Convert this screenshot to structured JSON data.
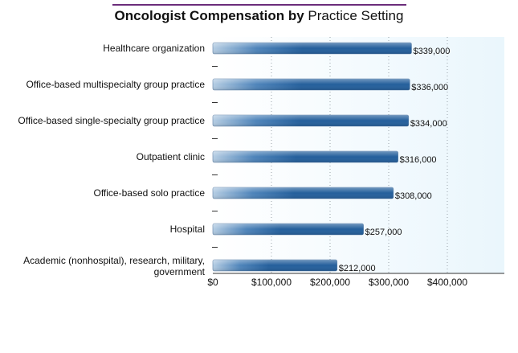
{
  "chart_data": {
    "type": "bar",
    "orientation": "horizontal",
    "title_bold": "Oncologist Compensation by",
    "title_rest": " Practice Setting",
    "categories": [
      "Healthcare organization",
      "Office-based multispecialty group practice",
      "Office-based single-specialty group practice",
      "Outpatient clinic",
      "Office-based solo practice",
      "Hospital",
      "Academic (nonhospital), research, military, government"
    ],
    "values": [
      339000,
      336000,
      334000,
      316000,
      308000,
      257000,
      212000
    ],
    "value_labels": [
      "$339,000",
      "$336,000",
      "$334,000",
      "$316,000",
      "$308,000",
      "$257,000",
      "$212,000"
    ],
    "xticks": [
      {
        "value": 0,
        "label": "$0"
      },
      {
        "value": 100000,
        "label": "$100,000"
      },
      {
        "value": 200000,
        "label": "$200,000"
      },
      {
        "value": 300000,
        "label": "$300,000"
      },
      {
        "value": 400000,
        "label": "$400,000"
      }
    ],
    "xlim": [
      0,
      500000
    ],
    "grid": true,
    "colors": {
      "bar_dark": "#245f9c",
      "bar_light": "#b5cde3",
      "plot_bg_right": "#eaf6fc",
      "title_rule": "#6b2d7b"
    }
  }
}
